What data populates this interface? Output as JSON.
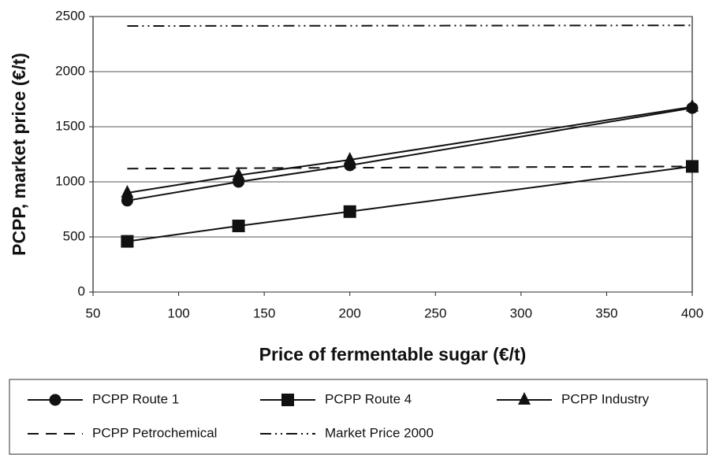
{
  "chart_data": {
    "type": "line",
    "xlabel": "Price of fermentable sugar (€/t)",
    "ylabel": "PCPP, market price (€/t)",
    "xlim": [
      50,
      400
    ],
    "xticks": [
      50,
      100,
      150,
      200,
      250,
      300,
      350,
      400
    ],
    "ylim": [
      0,
      2500
    ],
    "yticks": [
      0,
      500,
      1000,
      1500,
      2000,
      2500
    ],
    "grid": true,
    "series": [
      {
        "name": "PCPP Route 1",
        "color": "#111111",
        "marker": "circle",
        "dash": "solid",
        "x": [
          70,
          135,
          200,
          400
        ],
        "values": [
          830,
          1000,
          1150,
          1670
        ]
      },
      {
        "name": "PCPP Route 4",
        "color": "#111111",
        "marker": "square",
        "dash": "solid",
        "x": [
          70,
          135,
          200,
          400
        ],
        "values": [
          460,
          600,
          730,
          1140
        ]
      },
      {
        "name": "PCPP Industry",
        "color": "#111111",
        "marker": "triangle",
        "dash": "solid",
        "x": [
          70,
          135,
          200,
          400
        ],
        "values": [
          900,
          1060,
          1200,
          1680
        ]
      },
      {
        "name": "PCPP Petrochemical",
        "color": "#111111",
        "marker": "none",
        "dash": "dashed",
        "x": [
          70,
          400
        ],
        "values": [
          1120,
          1140
        ]
      },
      {
        "name": "Market Price 2000",
        "color": "#111111",
        "marker": "none",
        "dash": "dashdot",
        "x": [
          70,
          400
        ],
        "values": [
          2414,
          2420
        ]
      }
    ]
  }
}
